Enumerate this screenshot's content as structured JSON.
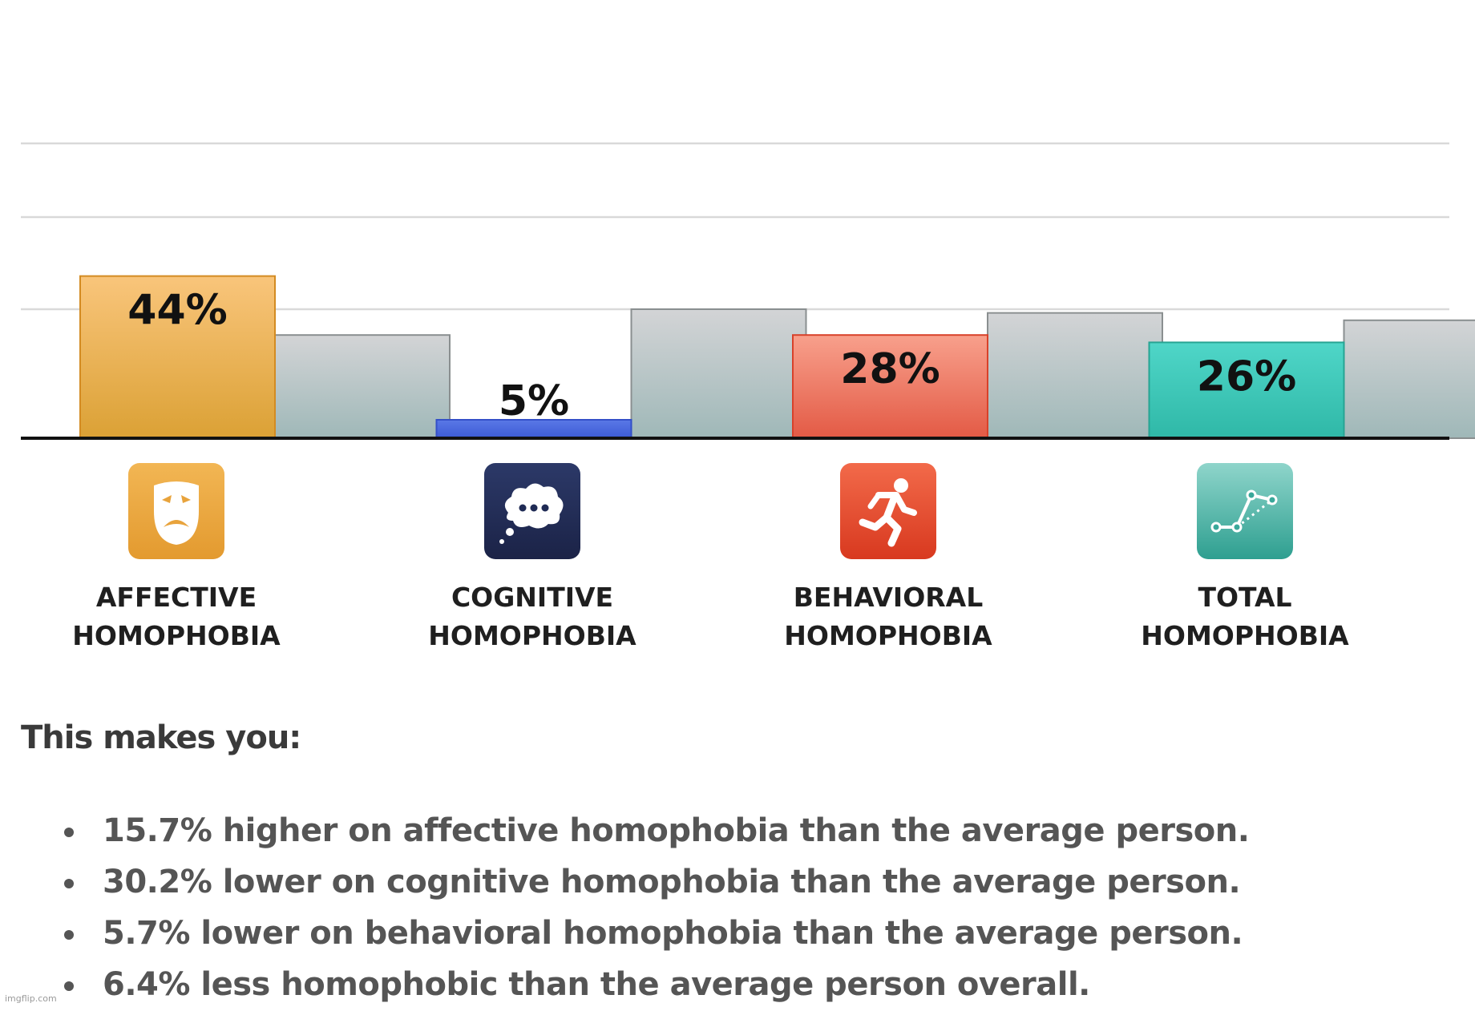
{
  "chart_data": {
    "type": "bar",
    "categories": [
      "AFFECTIVE HOMOPHOBIA",
      "COGNITIVE HOMOPHOBIA",
      "BEHAVIORAL HOMOPHOBIA",
      "TOTAL HOMOPHOBIA"
    ],
    "series": [
      {
        "values": [
          44,
          5,
          28,
          26
        ],
        "colors": [
          "#e5a53e",
          "#4f6fe0",
          "#ee6a56",
          "#3ec9b8"
        ]
      },
      {
        "values": [
          28,
          35,
          34,
          32
        ],
        "colors": [
          "#c4c8c9",
          "#c4c8c9",
          "#c4c8c9",
          "#c4c8c9"
        ]
      }
    ],
    "value_labels": [
      "44%",
      "5%",
      "28%",
      "26%"
    ],
    "ylim": [
      0,
      100
    ],
    "grid": true,
    "icons": [
      "drama-mask-icon",
      "thought-bubble-icon",
      "running-person-icon",
      "line-graph-icon"
    ],
    "icon_colors": [
      "#e8a33c",
      "#1f2b55",
      "#e8452a",
      "#3aa89a"
    ]
  },
  "labels": [
    {
      "line1": "AFFECTIVE",
      "line2": "HOMOPHOBIA"
    },
    {
      "line1": "COGNITIVE",
      "line2": "HOMOPHOBIA"
    },
    {
      "line1": "BEHAVIORAL",
      "line2": "HOMOPHOBIA"
    },
    {
      "line1": "TOTAL",
      "line2": "HOMOPHOBIA"
    }
  ],
  "summary": {
    "heading": "This makes you:",
    "items": [
      "15.7% higher on affective homophobia than the average person.",
      "30.2% lower on cognitive homophobia than the average person.",
      "5.7% lower on behavioral homophobia than the average person.",
      "6.4% less homophobic than the average person overall."
    ]
  },
  "watermark": "imgflip.com"
}
